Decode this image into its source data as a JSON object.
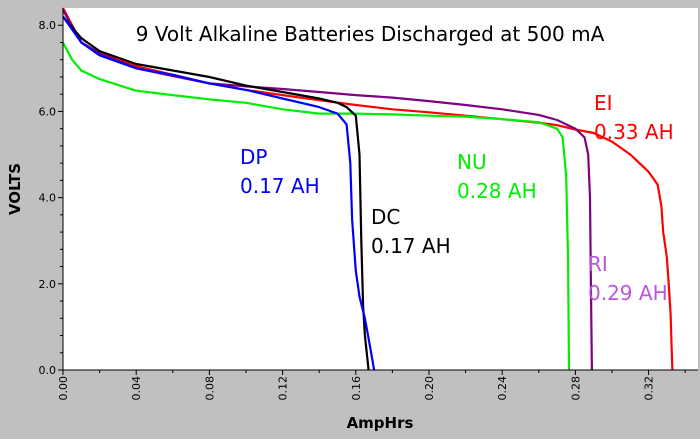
{
  "chart_data": {
    "type": "line",
    "title": "9 Volt Alkaline Batteries Discharged at 500 mA",
    "xlabel": "AmpHrs",
    "ylabel": "VOLTS",
    "xlim": [
      0,
      0.347
    ],
    "ylim": [
      0,
      8.4
    ],
    "x_ticks": [
      "0.00",
      "0.04",
      "0.08",
      "0.12",
      "0.16",
      "0.20",
      "0.24",
      "0.28",
      "0.32"
    ],
    "y_ticks": [
      "0.0",
      "2.0",
      "4.0",
      "6.0",
      "8.0"
    ],
    "grid": false,
    "series": [
      {
        "name": "EI",
        "label_lines": [
          "EI",
          "0.33 AH"
        ],
        "color": "#ff0000",
        "points": [
          [
            0,
            8.4
          ],
          [
            0.01,
            7.6
          ],
          [
            0.02,
            7.35
          ],
          [
            0.04,
            7.05
          ],
          [
            0.06,
            6.85
          ],
          [
            0.08,
            6.65
          ],
          [
            0.1,
            6.5
          ],
          [
            0.12,
            6.38
          ],
          [
            0.14,
            6.26
          ],
          [
            0.16,
            6.15
          ],
          [
            0.18,
            6.05
          ],
          [
            0.2,
            5.98
          ],
          [
            0.22,
            5.9
          ],
          [
            0.24,
            5.82
          ],
          [
            0.26,
            5.74
          ],
          [
            0.27,
            5.68
          ],
          [
            0.28,
            5.58
          ],
          [
            0.29,
            5.5
          ],
          [
            0.3,
            5.3
          ],
          [
            0.31,
            5.0
          ],
          [
            0.32,
            4.6
          ],
          [
            0.325,
            4.3
          ],
          [
            0.327,
            3.8
          ],
          [
            0.328,
            3.2
          ],
          [
            0.329,
            2.9
          ],
          [
            0.33,
            2.6
          ],
          [
            0.331,
            2.0
          ],
          [
            0.332,
            1.3
          ],
          [
            0.3325,
            0.6
          ],
          [
            0.333,
            0.0
          ]
        ]
      },
      {
        "name": "RI",
        "label_lines": [
          "RI",
          "0.29 AH"
        ],
        "color": "#800080",
        "points": [
          [
            0,
            8.35
          ],
          [
            0.01,
            7.6
          ],
          [
            0.02,
            7.35
          ],
          [
            0.04,
            7.0
          ],
          [
            0.06,
            6.82
          ],
          [
            0.08,
            6.65
          ],
          [
            0.1,
            6.58
          ],
          [
            0.12,
            6.52
          ],
          [
            0.14,
            6.45
          ],
          [
            0.16,
            6.38
          ],
          [
            0.18,
            6.32
          ],
          [
            0.2,
            6.24
          ],
          [
            0.22,
            6.15
          ],
          [
            0.24,
            6.05
          ],
          [
            0.26,
            5.92
          ],
          [
            0.27,
            5.8
          ],
          [
            0.28,
            5.6
          ],
          [
            0.285,
            5.4
          ],
          [
            0.287,
            5.0
          ],
          [
            0.288,
            4.0
          ],
          [
            0.2885,
            2.0
          ],
          [
            0.289,
            0.0
          ]
        ]
      },
      {
        "name": "NU",
        "label_lines": [
          "NU",
          "0.28 AH"
        ],
        "color": "#00ee00",
        "points": [
          [
            0,
            7.6
          ],
          [
            0.005,
            7.2
          ],
          [
            0.01,
            6.95
          ],
          [
            0.02,
            6.75
          ],
          [
            0.04,
            6.48
          ],
          [
            0.06,
            6.38
          ],
          [
            0.08,
            6.28
          ],
          [
            0.1,
            6.2
          ],
          [
            0.12,
            6.05
          ],
          [
            0.14,
            5.95
          ],
          [
            0.16,
            5.95
          ],
          [
            0.18,
            5.93
          ],
          [
            0.2,
            5.9
          ],
          [
            0.22,
            5.88
          ],
          [
            0.24,
            5.82
          ],
          [
            0.26,
            5.75
          ],
          [
            0.27,
            5.6
          ],
          [
            0.273,
            5.4
          ],
          [
            0.275,
            4.5
          ],
          [
            0.276,
            2.5
          ],
          [
            0.2765,
            0.0
          ]
        ]
      },
      {
        "name": "DC",
        "label_lines": [
          "DC",
          "0.17 AH"
        ],
        "color": "#000000",
        "points": [
          [
            0,
            8.2
          ],
          [
            0.01,
            7.7
          ],
          [
            0.02,
            7.4
          ],
          [
            0.04,
            7.1
          ],
          [
            0.06,
            6.95
          ],
          [
            0.08,
            6.8
          ],
          [
            0.1,
            6.6
          ],
          [
            0.12,
            6.45
          ],
          [
            0.14,
            6.3
          ],
          [
            0.15,
            6.2
          ],
          [
            0.155,
            6.1
          ],
          [
            0.16,
            5.9
          ],
          [
            0.162,
            5.0
          ],
          [
            0.163,
            3.0
          ],
          [
            0.164,
            1.5
          ],
          [
            0.165,
            0.8
          ],
          [
            0.167,
            0.0
          ]
        ]
      },
      {
        "name": "DP",
        "label_lines": [
          "DP",
          "0.17 AH"
        ],
        "color": "#0000ff",
        "points": [
          [
            0,
            8.2
          ],
          [
            0.01,
            7.6
          ],
          [
            0.02,
            7.3
          ],
          [
            0.04,
            7.0
          ],
          [
            0.06,
            6.85
          ],
          [
            0.08,
            6.65
          ],
          [
            0.1,
            6.5
          ],
          [
            0.12,
            6.3
          ],
          [
            0.14,
            6.1
          ],
          [
            0.15,
            5.95
          ],
          [
            0.155,
            5.7
          ],
          [
            0.157,
            4.8
          ],
          [
            0.158,
            3.5
          ],
          [
            0.16,
            2.3
          ],
          [
            0.162,
            1.7
          ],
          [
            0.165,
            1.2
          ],
          [
            0.168,
            0.5
          ],
          [
            0.17,
            0.0
          ]
        ]
      }
    ]
  }
}
